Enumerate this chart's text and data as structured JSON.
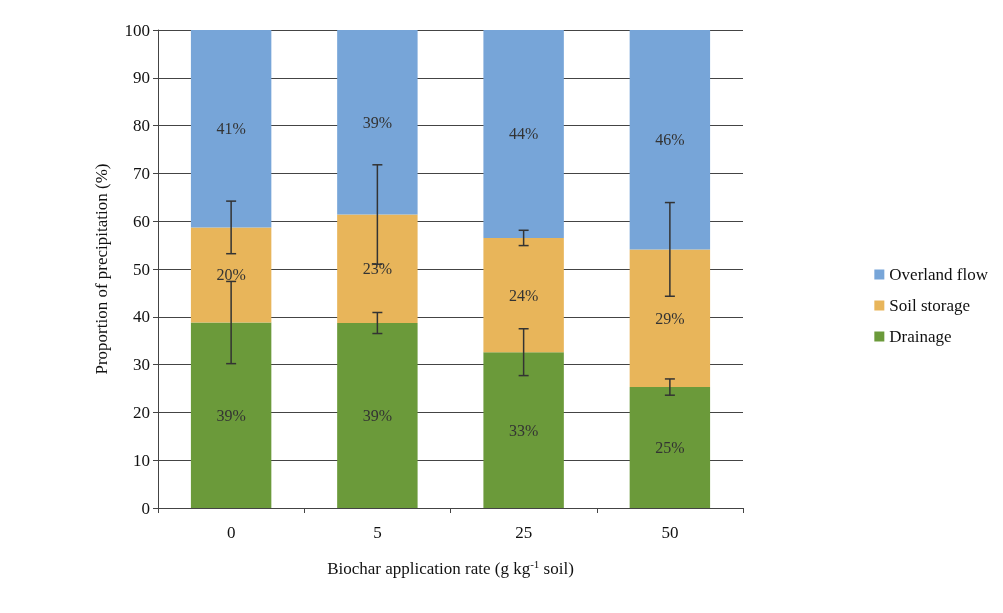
{
  "chart_data": {
    "type": "bar",
    "stacked": true,
    "categories": [
      "0",
      "5",
      "25",
      "50"
    ],
    "xlabel": "Biochar application rate (g kg$^{-1}$ soil)",
    "ylabel": "Proportion of precipitation (%)",
    "ylim": [
      0,
      100
    ],
    "yticks": [
      0,
      10,
      20,
      30,
      40,
      50,
      60,
      70,
      80,
      90,
      100
    ],
    "grid": "y",
    "legend": "right",
    "series": [
      {
        "name": "Drainage",
        "color": "#6b9a3a",
        "values": [
          38.8,
          38.7,
          32.6,
          25.3
        ],
        "errors": [
          8.6,
          2.2,
          4.9,
          1.7
        ],
        "value_labels": [
          "39%",
          "39%",
          "33%",
          "25%"
        ]
      },
      {
        "name": "Soil storage",
        "color": "#e8b55a",
        "values": [
          19.9,
          22.7,
          23.9,
          28.8
        ],
        "errors": [
          5.5,
          10.4,
          1.6,
          9.8
        ],
        "value_labels": [
          "20%",
          "23%",
          "24%",
          "29%"
        ]
      },
      {
        "name": "Overland flow",
        "color": "#77a5d8",
        "values": [
          41.3,
          38.6,
          43.5,
          45.9
        ],
        "value_labels": [
          "41%",
          "39%",
          "44%",
          "46%"
        ]
      }
    ]
  }
}
